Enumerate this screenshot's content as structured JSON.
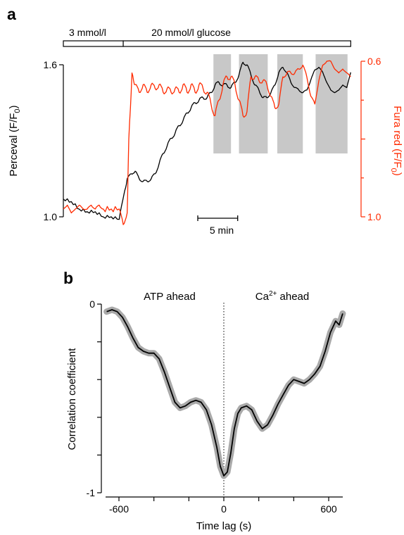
{
  "colors": {
    "black": "#000000",
    "red": "#ff2a00",
    "shade": "#c8c8c8",
    "ci_band": "#a9a9a9"
  },
  "chart_data": [
    {
      "panel_label": "a",
      "type": "line",
      "condition_bar": [
        {
          "label": "3 mmol/l",
          "t_start": 0,
          "t_end": 7.5
        },
        {
          "label": "20 mmol/l glucose",
          "t_start": 7.5,
          "t_end": 36
        }
      ],
      "scale_bar_label": "5 min",
      "scale_bar_minutes": 5,
      "x_range_min": [
        0,
        36.5
      ],
      "y_left": {
        "label": "Perceval (F/F",
        "sub": "0",
        "suffix": ")",
        "ticks": [
          {
            "v": 1.0,
            "label": "1.0"
          },
          {
            "v": 1.6,
            "label": "1.6"
          }
        ],
        "range": [
          0.96,
          1.63
        ]
      },
      "y_right": {
        "label": "Fura red (F/F",
        "sub": "0",
        "suffix": ")",
        "ticks": [
          {
            "v": 1.0,
            "label": "1.0"
          },
          {
            "v": 0.8,
            "label": ""
          },
          {
            "v": 0.6,
            "label": "0.6"
          }
        ],
        "range": [
          1.0,
          0.6
        ],
        "inverted": true
      },
      "shaded_intervals_min": [
        [
          18.8,
          21.0
        ],
        [
          22.0,
          25.6
        ],
        [
          26.8,
          30.0
        ],
        [
          31.6,
          35.6
        ]
      ],
      "series": [
        {
          "name": "Perceval",
          "axis": "left",
          "color": "#000000",
          "points": [
            [
              0,
              1.07
            ],
            [
              1,
              1.06
            ],
            [
              2,
              1.03
            ],
            [
              3,
              1.02
            ],
            [
              4,
              1.02
            ],
            [
              5,
              1.0
            ],
            [
              6,
              1.0
            ],
            [
              7,
              0.99
            ],
            [
              7.6,
              1.09
            ],
            [
              8,
              1.15
            ],
            [
              8.5,
              1.17
            ],
            [
              9,
              1.18
            ],
            [
              9.5,
              1.15
            ],
            [
              10,
              1.14
            ],
            [
              10.5,
              1.14
            ],
            [
              11,
              1.15
            ],
            [
              11.5,
              1.17
            ],
            [
              12,
              1.21
            ],
            [
              12.5,
              1.25
            ],
            [
              13,
              1.28
            ],
            [
              13.5,
              1.31
            ],
            [
              14,
              1.33
            ],
            [
              14.5,
              1.36
            ],
            [
              15,
              1.38
            ],
            [
              15.5,
              1.41
            ],
            [
              16,
              1.43
            ],
            [
              16.5,
              1.45
            ],
            [
              17,
              1.46
            ],
            [
              17.5,
              1.47
            ],
            [
              18,
              1.47
            ],
            [
              18.5,
              1.49
            ],
            [
              19,
              1.52
            ],
            [
              19.5,
              1.53
            ],
            [
              20,
              1.52
            ],
            [
              20.5,
              1.52
            ],
            [
              21,
              1.51
            ],
            [
              21.5,
              1.53
            ],
            [
              22,
              1.56
            ],
            [
              22.5,
              1.61
            ],
            [
              23,
              1.6
            ],
            [
              23.5,
              1.56
            ],
            [
              24,
              1.52
            ],
            [
              24.5,
              1.5
            ],
            [
              25,
              1.47
            ],
            [
              25.5,
              1.47
            ],
            [
              26,
              1.49
            ],
            [
              26.5,
              1.52
            ],
            [
              27,
              1.57
            ],
            [
              27.5,
              1.59
            ],
            [
              28,
              1.57
            ],
            [
              28.5,
              1.53
            ],
            [
              29,
              1.51
            ],
            [
              29.5,
              1.5
            ],
            [
              30,
              1.49
            ],
            [
              30.5,
              1.5
            ],
            [
              31,
              1.54
            ],
            [
              31.5,
              1.58
            ],
            [
              32,
              1.59
            ],
            [
              32.5,
              1.57
            ],
            [
              33,
              1.53
            ],
            [
              33.5,
              1.5
            ],
            [
              34,
              1.49
            ],
            [
              34.5,
              1.5
            ],
            [
              35,
              1.52
            ],
            [
              35.5,
              1.51
            ],
            [
              36,
              1.57
            ]
          ]
        },
        {
          "name": "Fura red",
          "axis": "right",
          "color": "#ff2a00",
          "points": [
            [
              0,
              0.98
            ],
            [
              0.5,
              0.97
            ],
            [
              1,
              0.99
            ],
            [
              1.5,
              0.98
            ],
            [
              2,
              0.97
            ],
            [
              2.5,
              0.98
            ],
            [
              3,
              0.98
            ],
            [
              3.5,
              0.97
            ],
            [
              4,
              0.98
            ],
            [
              4.5,
              0.97
            ],
            [
              5,
              0.98
            ],
            [
              6,
              0.98
            ],
            [
              7,
              0.98
            ],
            [
              7.5,
              1.02
            ],
            [
              8,
              0.99
            ],
            [
              8.2,
              0.8
            ],
            [
              8.6,
              0.63
            ],
            [
              9,
              0.66
            ],
            [
              9.5,
              0.68
            ],
            [
              10,
              0.66
            ],
            [
              10.5,
              0.68
            ],
            [
              11,
              0.66
            ],
            [
              11.5,
              0.67
            ],
            [
              12,
              0.66
            ],
            [
              12.5,
              0.68
            ],
            [
              13,
              0.67
            ],
            [
              13.5,
              0.68
            ],
            [
              14,
              0.67
            ],
            [
              14.5,
              0.68
            ],
            [
              15,
              0.66
            ],
            [
              15.5,
              0.68
            ],
            [
              16,
              0.66
            ],
            [
              16.5,
              0.68
            ],
            [
              17,
              0.66
            ],
            [
              17.5,
              0.67
            ],
            [
              18,
              0.68
            ],
            [
              18.5,
              0.71
            ],
            [
              19,
              0.74
            ],
            [
              19.5,
              0.7
            ],
            [
              20,
              0.66
            ],
            [
              20.5,
              0.64
            ],
            [
              21,
              0.64
            ],
            [
              21.5,
              0.66
            ],
            [
              22,
              0.7
            ],
            [
              22.5,
              0.74
            ],
            [
              23,
              0.73
            ],
            [
              23.5,
              0.64
            ],
            [
              24,
              0.64
            ],
            [
              24.5,
              0.65
            ],
            [
              25,
              0.65
            ],
            [
              25.5,
              0.66
            ],
            [
              26,
              0.69
            ],
            [
              26.5,
              0.72
            ],
            [
              27,
              0.71
            ],
            [
              27.5,
              0.64
            ],
            [
              28,
              0.63
            ],
            [
              28.5,
              0.63
            ],
            [
              29,
              0.63
            ],
            [
              29.5,
              0.62
            ],
            [
              30,
              0.61
            ],
            [
              30.5,
              0.64
            ],
            [
              31,
              0.69
            ],
            [
              31.5,
              0.71
            ],
            [
              32,
              0.65
            ],
            [
              32.5,
              0.61
            ],
            [
              33,
              0.6
            ],
            [
              33.5,
              0.6
            ],
            [
              34,
              0.62
            ],
            [
              34.5,
              0.63
            ],
            [
              35,
              0.62
            ],
            [
              35.5,
              0.63
            ],
            [
              36,
              0.64
            ]
          ]
        }
      ]
    },
    {
      "panel_label": "b",
      "type": "line",
      "xlabel": "Time lag (s)",
      "ylabel": "Correlation coefficient",
      "xlim": [
        -700,
        700
      ],
      "ylim": [
        -1,
        0
      ],
      "xticks": [
        {
          "v": -600,
          "label": "-600"
        },
        {
          "v": -400,
          "label": ""
        },
        {
          "v": -200,
          "label": ""
        },
        {
          "v": 0,
          "label": "0"
        },
        {
          "v": 200,
          "label": ""
        },
        {
          "v": 400,
          "label": ""
        },
        {
          "v": 600,
          "label": "600"
        }
      ],
      "yticks": [
        {
          "v": 0,
          "label": "0"
        },
        {
          "v": -0.2,
          "label": ""
        },
        {
          "v": -0.4,
          "label": ""
        },
        {
          "v": -0.6,
          "label": ""
        },
        {
          "v": -0.8,
          "label": ""
        },
        {
          "v": -1,
          "label": "-1"
        }
      ],
      "annotations": [
        {
          "text": "ATP ahead"
        },
        {
          "text": "Ca",
          "sup": "2+",
          "suffix": " ahead"
        }
      ],
      "zero_line": true,
      "series": [
        {
          "name": "",
          "color": "#000000",
          "band_halfwidth": 0.018,
          "points": [
            [
              -670,
              -0.04
            ],
            [
              -640,
              -0.03
            ],
            [
              -610,
              -0.04
            ],
            [
              -580,
              -0.07
            ],
            [
              -550,
              -0.12
            ],
            [
              -520,
              -0.18
            ],
            [
              -490,
              -0.23
            ],
            [
              -460,
              -0.25
            ],
            [
              -430,
              -0.26
            ],
            [
              -400,
              -0.26
            ],
            [
              -370,
              -0.29
            ],
            [
              -340,
              -0.36
            ],
            [
              -310,
              -0.44
            ],
            [
              -280,
              -0.52
            ],
            [
              -250,
              -0.55
            ],
            [
              -220,
              -0.54
            ],
            [
              -190,
              -0.52
            ],
            [
              -160,
              -0.51
            ],
            [
              -130,
              -0.52
            ],
            [
              -100,
              -0.56
            ],
            [
              -70,
              -0.64
            ],
            [
              -40,
              -0.76
            ],
            [
              -20,
              -0.86
            ],
            [
              0,
              -0.91
            ],
            [
              20,
              -0.89
            ],
            [
              40,
              -0.79
            ],
            [
              60,
              -0.66
            ],
            [
              80,
              -0.58
            ],
            [
              100,
              -0.55
            ],
            [
              130,
              -0.54
            ],
            [
              160,
              -0.56
            ],
            [
              190,
              -0.62
            ],
            [
              220,
              -0.66
            ],
            [
              250,
              -0.64
            ],
            [
              280,
              -0.59
            ],
            [
              310,
              -0.53
            ],
            [
              340,
              -0.48
            ],
            [
              370,
              -0.43
            ],
            [
              400,
              -0.4
            ],
            [
              430,
              -0.41
            ],
            [
              460,
              -0.42
            ],
            [
              490,
              -0.4
            ],
            [
              520,
              -0.37
            ],
            [
              550,
              -0.33
            ],
            [
              580,
              -0.25
            ],
            [
              610,
              -0.15
            ],
            [
              640,
              -0.09
            ],
            [
              660,
              -0.11
            ],
            [
              680,
              -0.05
            ]
          ]
        }
      ]
    }
  ]
}
